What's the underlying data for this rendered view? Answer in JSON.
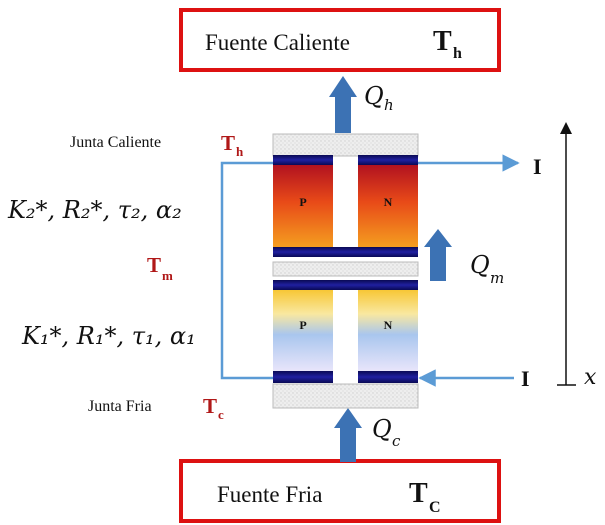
{
  "top_box": {
    "label": "Fuente Caliente",
    "temp_main": "T",
    "temp_sub": "h"
  },
  "bottom_box": {
    "label": "Fuente Fria",
    "temp_main": "T",
    "temp_sub": "C"
  },
  "heat": {
    "qh": {
      "main": "Q",
      "sub": "h"
    },
    "qm": {
      "main": "Q",
      "sub": "m"
    },
    "qc": {
      "main": "Q",
      "sub": "c"
    }
  },
  "junctions": {
    "hot": {
      "label": "Junta Caliente",
      "temp_main": "T",
      "temp_sub": "h"
    },
    "mid": {
      "temp_main": "T",
      "temp_sub": "m"
    },
    "cold": {
      "label": "Junta Fria",
      "temp_main": "T",
      "temp_sub": "c"
    }
  },
  "stages": {
    "upper": {
      "params": "K₂*, R₂*, τ₂, α₂",
      "p_label": "P",
      "n_label": "N"
    },
    "lower": {
      "params": "K₁*, R₁*, τ₁, α₁",
      "p_label": "P",
      "n_label": "N"
    }
  },
  "current": {
    "top": "I",
    "bottom": "I"
  },
  "axis": {
    "label": "x"
  },
  "colors": {
    "box_border": "#dd1111",
    "current_line": "#5b9bd5",
    "heat_arrow": "#3c72b4",
    "temp_red": "#b01818",
    "conductor_navy": "#14146e"
  }
}
